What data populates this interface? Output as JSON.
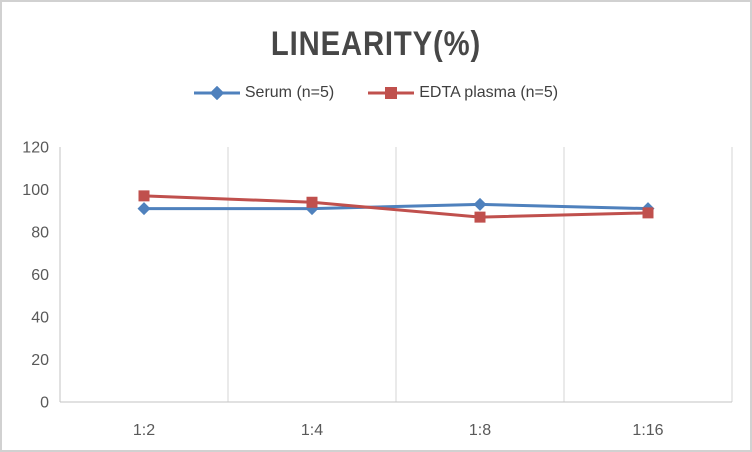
{
  "window": {
    "background": "#ffffff",
    "border_color": "#d1d1d1"
  },
  "chart_data": {
    "type": "line",
    "title": "LINEARITY(%)",
    "categories": [
      "1:2",
      "1:4",
      "1:8",
      "1:16"
    ],
    "series": [
      {
        "name": "Serum (n=5)",
        "marker": "diamond",
        "color": "#4F81BD",
        "values": [
          91,
          91,
          93,
          91
        ]
      },
      {
        "name": "EDTA plasma (n=5)",
        "marker": "square",
        "color": "#C0504D",
        "values": [
          97,
          94,
          87,
          89
        ]
      }
    ],
    "xlabel": "",
    "ylabel": "",
    "ylim": [
      0,
      120
    ],
    "y_ticks": [
      0,
      20,
      40,
      60,
      80,
      100,
      120
    ],
    "grid": "vertical-only",
    "legend_position": "top-center",
    "line_width": 3,
    "colors": {
      "gridline": "#d6d6d6",
      "axis": "#c3c3c3",
      "tick_label": "#595959",
      "title": "#474747",
      "legend_text": "#3f3f3f"
    }
  }
}
